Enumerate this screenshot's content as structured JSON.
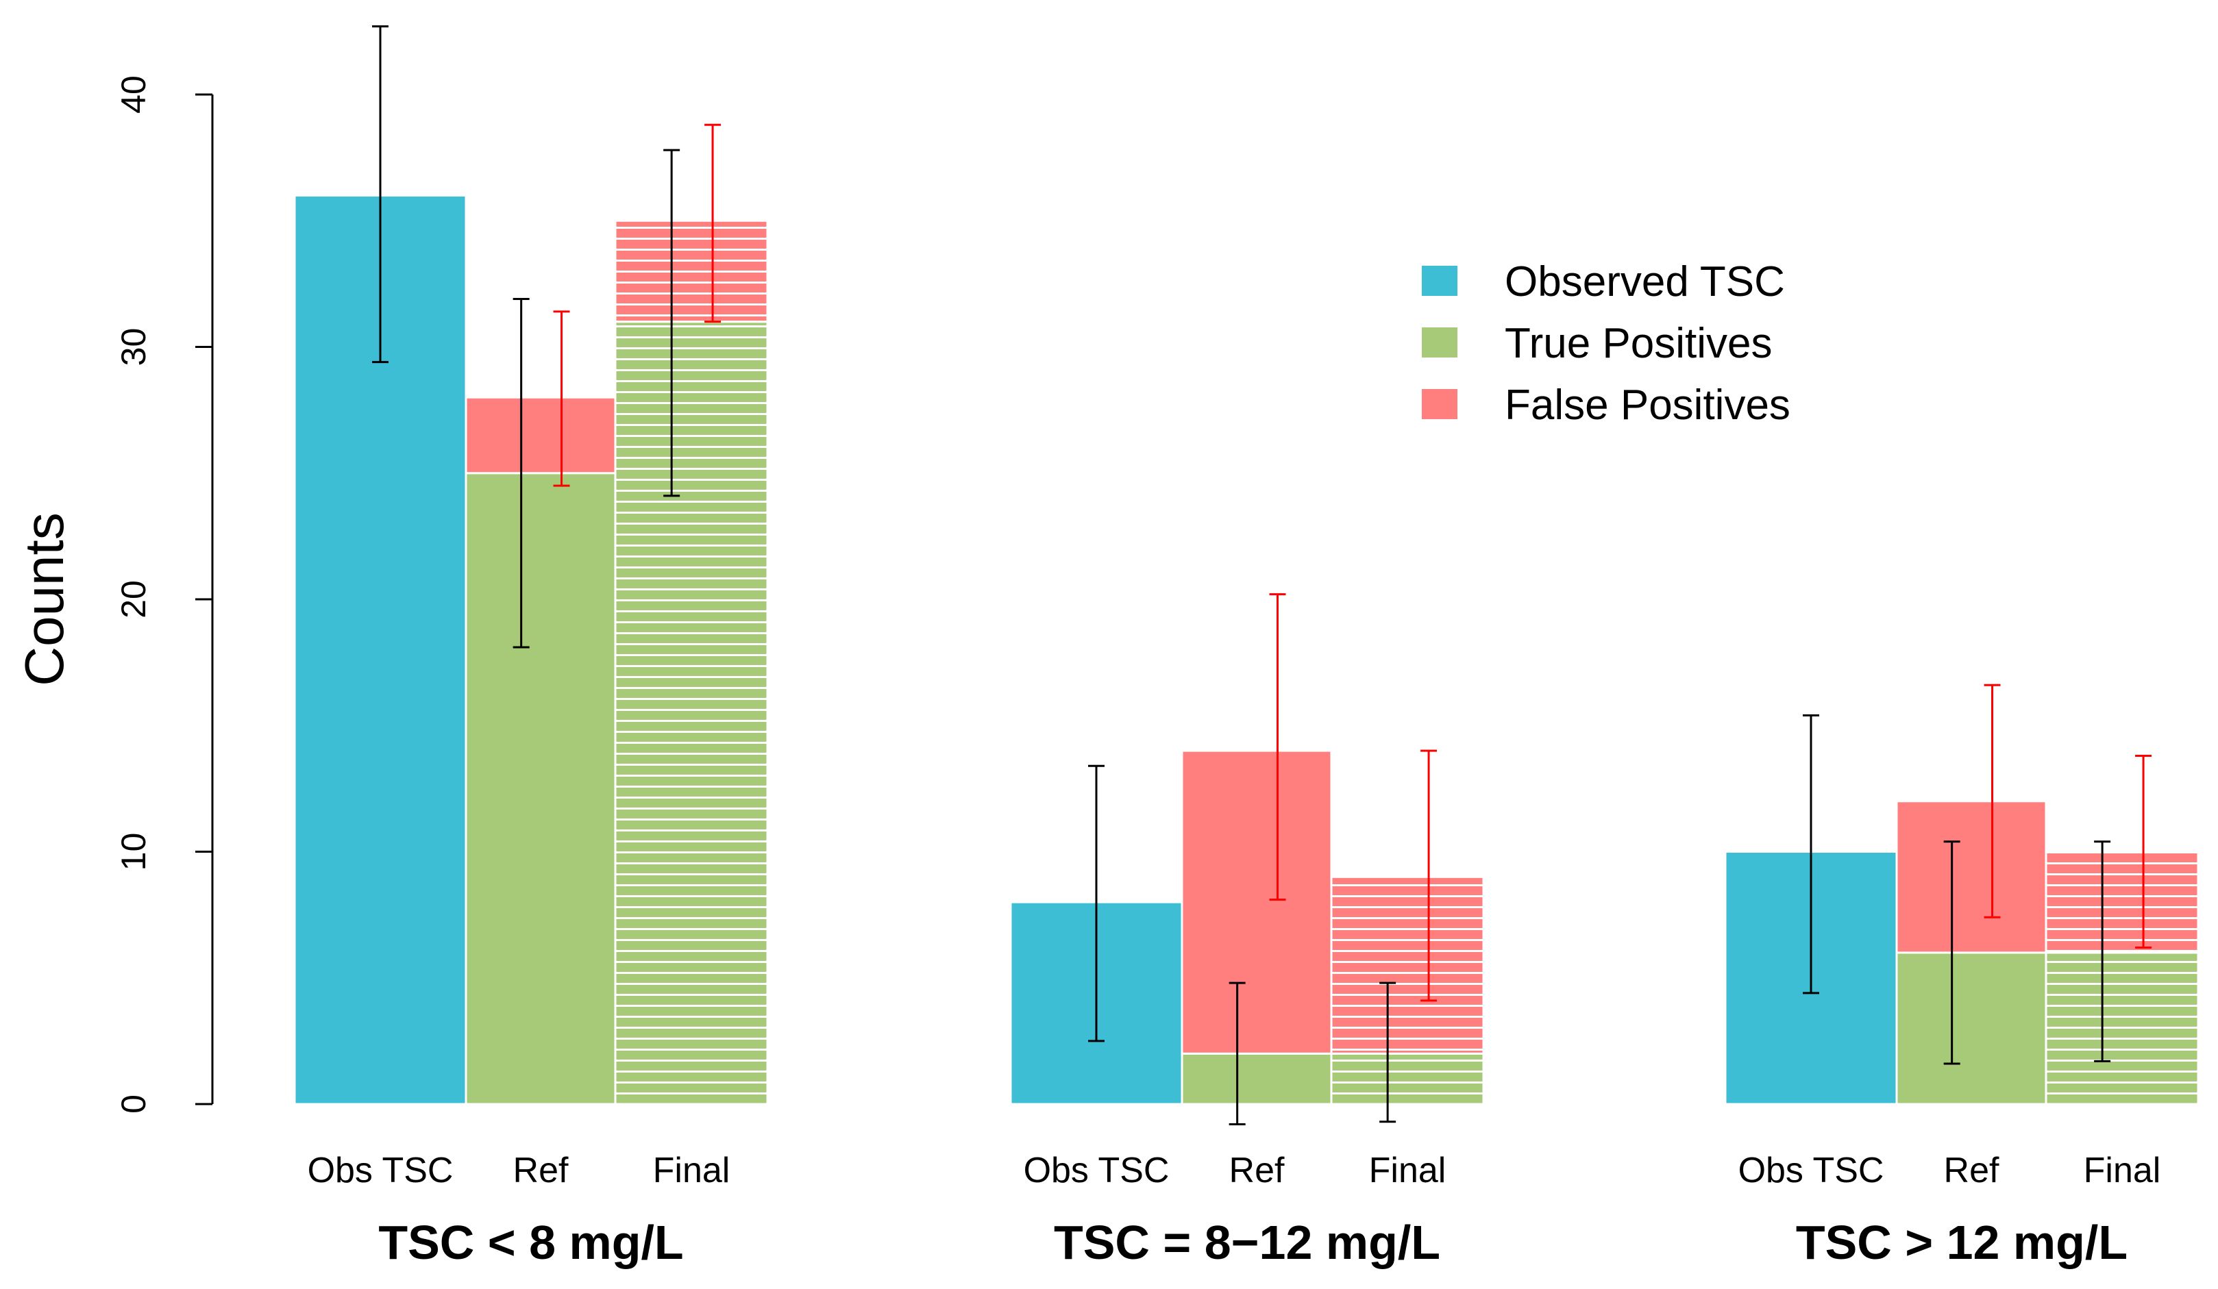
{
  "chart_data": {
    "type": "bar",
    "ylabel": "Counts",
    "ylim": [
      0,
      43
    ],
    "yticks": [
      "0",
      "10",
      "20",
      "30",
      "40"
    ],
    "grid": false,
    "legend_position": "top-right",
    "legend": [
      {
        "label": "Observed TSC",
        "color": "#3EBED4"
      },
      {
        "label": "True Positives",
        "color": "#A6CA78"
      },
      {
        "label": "False Positives",
        "color": "#FF7F7F"
      }
    ],
    "groups": [
      {
        "label": "TSC < 8 mg/L",
        "bars": [
          {
            "category": "Obs TSC",
            "kind": "observed",
            "value": 36,
            "err": [
              29.4,
              42.7
            ],
            "hatched": false
          },
          {
            "category": "Ref",
            "kind": "stacked",
            "true_pos": 25,
            "false_pos": 3,
            "tp_err": [
              18.1,
              31.9
            ],
            "fp_err": [
              24.5,
              31.4
            ],
            "hatched": false
          },
          {
            "category": "Final",
            "kind": "stacked",
            "true_pos": 31,
            "false_pos": 4,
            "tp_err": [
              24.1,
              37.8
            ],
            "fp_err": [
              31.0,
              38.8
            ],
            "hatched": true
          }
        ]
      },
      {
        "label": "TSC = 8−12 mg/L",
        "bars": [
          {
            "category": "Obs TSC",
            "kind": "observed",
            "value": 8,
            "err": [
              2.5,
              13.4
            ],
            "hatched": false
          },
          {
            "category": "Ref",
            "kind": "stacked",
            "true_pos": 2,
            "false_pos": 12,
            "tp_err": [
              -0.8,
              4.8
            ],
            "fp_err": [
              8.1,
              20.2
            ],
            "hatched": false
          },
          {
            "category": "Final",
            "kind": "stacked",
            "true_pos": 2,
            "false_pos": 7,
            "tp_err": [
              -0.7,
              4.8
            ],
            "fp_err": [
              4.1,
              14.0
            ],
            "hatched": true
          }
        ]
      },
      {
        "label": "TSC > 12 mg/L",
        "bars": [
          {
            "category": "Obs TSC",
            "kind": "observed",
            "value": 10,
            "err": [
              4.4,
              15.4
            ],
            "hatched": false
          },
          {
            "category": "Ref",
            "kind": "stacked",
            "true_pos": 6,
            "false_pos": 6,
            "tp_err": [
              1.6,
              10.4
            ],
            "fp_err": [
              7.4,
              16.6
            ],
            "hatched": false
          },
          {
            "category": "Final",
            "kind": "stacked",
            "true_pos": 6,
            "false_pos": 4,
            "tp_err": [
              1.7,
              10.4
            ],
            "fp_err": [
              6.2,
              13.8
            ],
            "hatched": true
          }
        ]
      }
    ]
  }
}
